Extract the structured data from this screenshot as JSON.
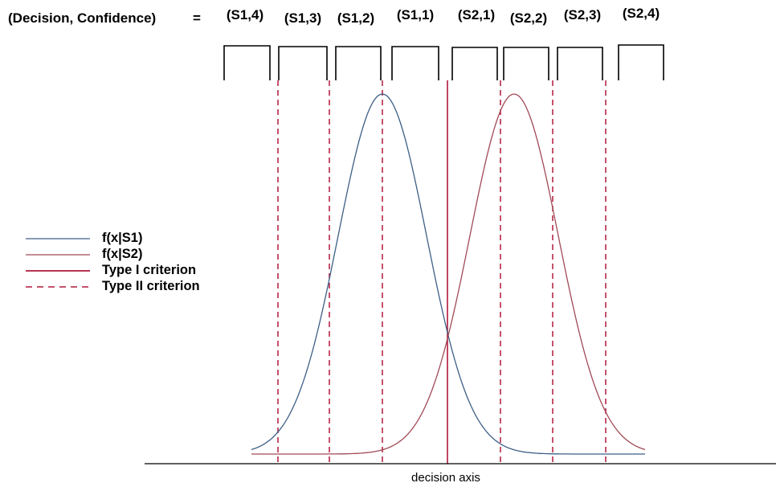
{
  "header": {
    "label": "(Decision, Confidence)",
    "equals": "=",
    "responses": [
      "(S1,4)",
      "(S1,3)",
      "(S1,2)",
      "(S1,1)",
      "(S2,1)",
      "(S2,2)",
      "(S2,3)",
      "(S2,4)"
    ]
  },
  "legend": {
    "items": [
      {
        "label": "f(x|S1)",
        "color": "#3d5f86",
        "style": "solid"
      },
      {
        "label": "f(x|S2)",
        "color": "#a14a56",
        "style": "solid"
      },
      {
        "label": "Type I criterion",
        "color": "#b0183c",
        "style": "solid"
      },
      {
        "label": "Type II criterion",
        "color": "#b0183c",
        "style": "dashed"
      }
    ]
  },
  "axis": {
    "label": "decision axis"
  },
  "colors": {
    "s1": "#3d5f86",
    "s2": "#a14a56",
    "criterion": "#b0183c"
  }
}
